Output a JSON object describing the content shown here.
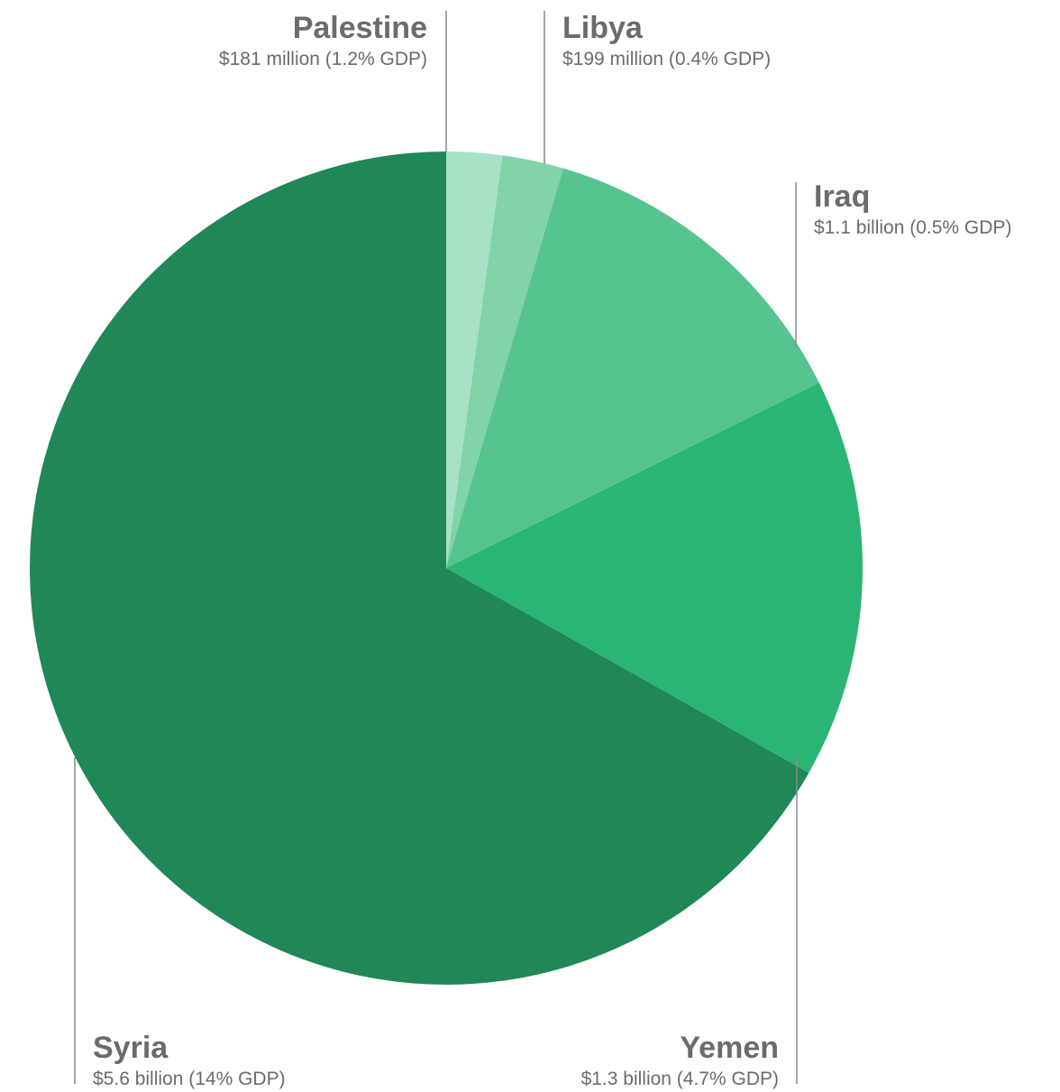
{
  "chart_data": {
    "type": "pie",
    "start": "top (12 o'clock), clockwise",
    "slices": [
      {
        "name": "Palestine",
        "value": 181,
        "unit": "million USD",
        "label": "$181 million (1.2% GDP)",
        "color": "#a8e2c6"
      },
      {
        "name": "Libya",
        "value": 199,
        "unit": "million USD",
        "label": "$199 million (0.4% GDP)",
        "color": "#82d3aa"
      },
      {
        "name": "Iraq",
        "value": 1100,
        "unit": "million USD",
        "label": "$1.1 billion (0.5% GDP)",
        "color": "#56c48f"
      },
      {
        "name": "Yemen",
        "value": 1300,
        "unit": "million USD",
        "label": "$1.3 billion (4.7% GDP)",
        "color": "#2bb574"
      },
      {
        "name": "Syria",
        "value": 5600,
        "unit": "million USD",
        "label": "$5.6 billion (14% GDP)",
        "color": "#208757"
      }
    ],
    "legend": "none; labels placed outside slices with leader lines",
    "label_color": "#6b6b6b"
  }
}
